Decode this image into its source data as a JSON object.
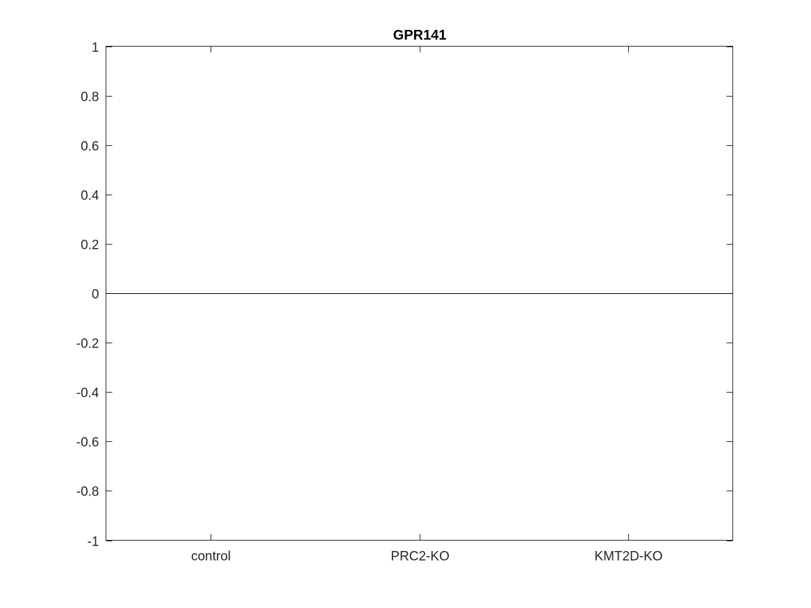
{
  "chart_data": {
    "type": "bar",
    "title": "GPR141",
    "xlabel": "",
    "ylabel": "",
    "categories": [
      "control",
      "PRC2-KO",
      "KMT2D-KO"
    ],
    "values": [
      0,
      0,
      0
    ],
    "ylim": [
      -1,
      1
    ],
    "yticks": [
      -1,
      -0.8,
      -0.6,
      -0.4,
      -0.2,
      0,
      0.2,
      0.4,
      0.6,
      0.8,
      1
    ],
    "ytick_labels": [
      "-1",
      "-0.8",
      "-0.6",
      "-0.4",
      "-0.2",
      "0",
      "0.2",
      "0.4",
      "0.6",
      "0.8",
      "1"
    ],
    "grid": false,
    "box": true
  }
}
